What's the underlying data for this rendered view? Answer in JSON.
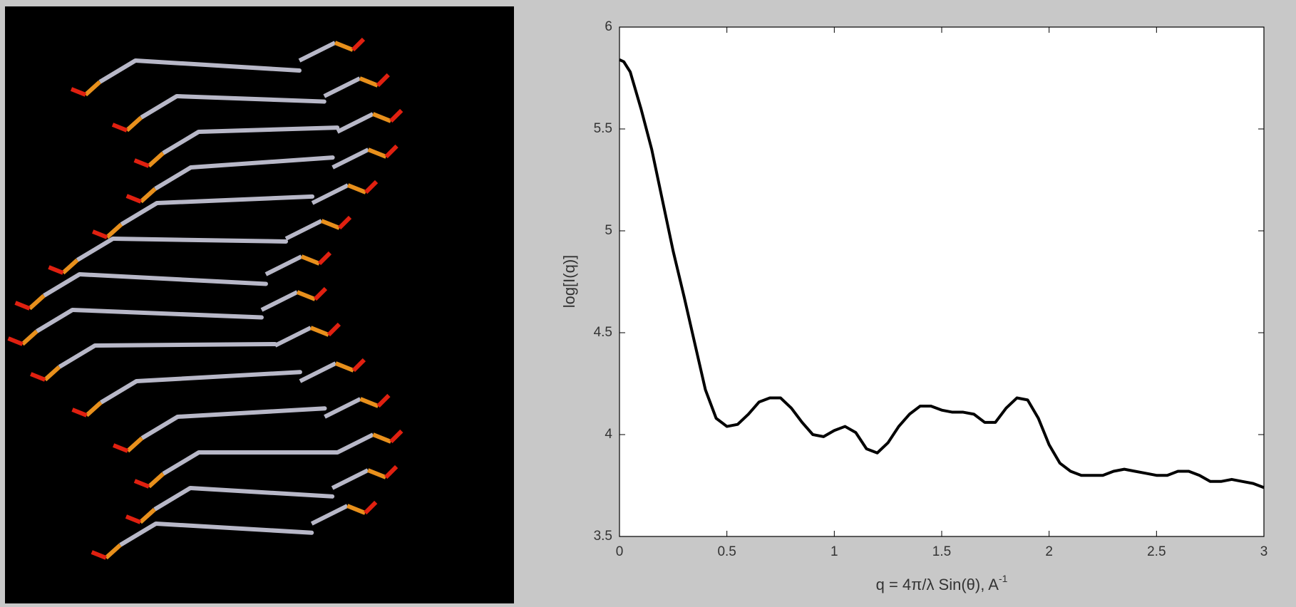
{
  "chart_data": {
    "type": "line",
    "xlabel": {
      "text": "q = 4π/λ Sin(θ), A",
      "sup": "-1"
    },
    "ylabel": "log[I(q)]",
    "x": [
      0,
      0.02,
      0.05,
      0.1,
      0.15,
      0.2,
      0.25,
      0.3,
      0.35,
      0.4,
      0.45,
      0.5,
      0.55,
      0.6,
      0.65,
      0.7,
      0.75,
      0.8,
      0.85,
      0.9,
      0.95,
      1.0,
      1.05,
      1.1,
      1.15,
      1.2,
      1.25,
      1.3,
      1.35,
      1.4,
      1.45,
      1.5,
      1.55,
      1.6,
      1.65,
      1.7,
      1.75,
      1.8,
      1.85,
      1.9,
      1.95,
      2.0,
      2.05,
      2.1,
      2.15,
      2.2,
      2.25,
      2.3,
      2.35,
      2.4,
      2.45,
      2.5,
      2.55,
      2.6,
      2.65,
      2.7,
      2.75,
      2.8,
      2.85,
      2.9,
      2.95,
      3.0
    ],
    "series": [
      {
        "color": "#000000",
        "values": [
          5.84,
          5.83,
          5.78,
          5.6,
          5.4,
          5.15,
          4.9,
          4.68,
          4.45,
          4.22,
          4.08,
          4.04,
          4.05,
          4.1,
          4.16,
          4.18,
          4.18,
          4.13,
          4.06,
          4.0,
          3.99,
          4.02,
          4.04,
          4.01,
          3.93,
          3.91,
          3.96,
          4.04,
          4.1,
          4.14,
          4.14,
          4.12,
          4.11,
          4.11,
          4.1,
          4.06,
          4.06,
          4.13,
          4.18,
          4.17,
          4.08,
          3.95,
          3.86,
          3.82,
          3.8,
          3.8,
          3.8,
          3.82,
          3.83,
          3.82,
          3.81,
          3.8,
          3.8,
          3.82,
          3.82,
          3.8,
          3.77,
          3.77,
          3.78,
          3.77,
          3.76,
          3.74
        ]
      }
    ],
    "xlim": [
      0,
      3
    ],
    "xticks": [
      0,
      0.5,
      1,
      1.5,
      2,
      2.5,
      3
    ],
    "ylim": [
      3.5,
      6
    ],
    "yticks": [
      3.5,
      4,
      4.5,
      5,
      5.5,
      6
    ],
    "grid": false
  }
}
